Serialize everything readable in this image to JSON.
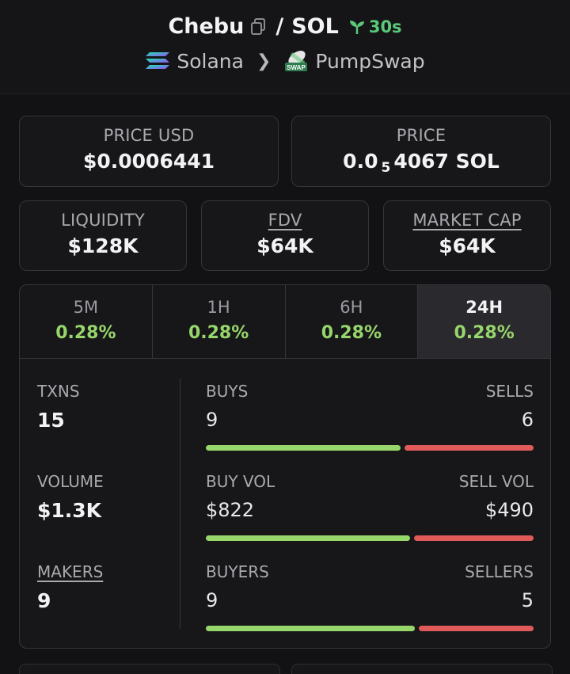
{
  "header": {
    "token": "Chebu",
    "separator": "/",
    "quote": "SOL",
    "age": "30s",
    "chain": "Solana",
    "dex": "PumpSwap",
    "dex_logo_text": "SWAP"
  },
  "price_usd": {
    "label": "PRICE USD",
    "value": "$0.0006441"
  },
  "price": {
    "label": "PRICE",
    "prefix": "0.0",
    "zeros": "5",
    "digits": "4067",
    "unit": "SOL"
  },
  "liquidity": {
    "label": "LIQUIDITY",
    "value": "$128K"
  },
  "fdv": {
    "label": "FDV",
    "value": "$64K"
  },
  "market_cap": {
    "label": "MARKET CAP",
    "value": "$64K"
  },
  "tabs": [
    {
      "label": "5M",
      "change": "0.28%"
    },
    {
      "label": "1H",
      "change": "0.28%"
    },
    {
      "label": "6H",
      "change": "0.28%"
    },
    {
      "label": "24H",
      "change": "0.28%"
    }
  ],
  "txns": {
    "label": "TXNS",
    "value": "15"
  },
  "volume": {
    "label": "VOLUME",
    "value": "$1.3K"
  },
  "makers": {
    "label": "MAKERS",
    "value": "9"
  },
  "buys_sells": {
    "left_label": "BUYS",
    "right_label": "SELLS",
    "left_value": "9",
    "right_value": "6",
    "left_fraction": 0.6
  },
  "vol_split": {
    "left_label": "BUY VOL",
    "right_label": "SELL VOL",
    "left_value": "$822",
    "right_value": "$490",
    "left_fraction": 0.627
  },
  "buyers_sellers": {
    "left_label": "BUYERS",
    "right_label": "SELLERS",
    "left_value": "9",
    "right_value": "5",
    "left_fraction": 0.643
  },
  "colors": {
    "positive": "#97d66a",
    "negative": "#e05a5a",
    "age": "#5bc97a"
  }
}
